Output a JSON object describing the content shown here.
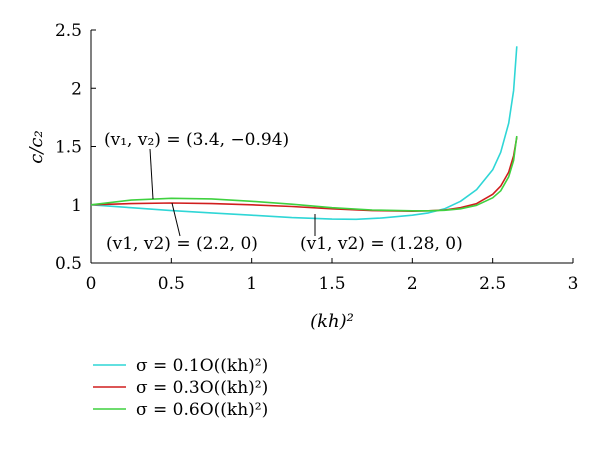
{
  "chart_data": {
    "type": "line",
    "title": "",
    "xlabel": "(kh)²",
    "ylabel": "c/c₂",
    "xlim": [
      0,
      3
    ],
    "ylim": [
      0.5,
      2.5
    ],
    "xticks": [
      "0",
      "0.5",
      "1",
      "1.5",
      "2",
      "2.5",
      "3"
    ],
    "yticks": [
      "0.5",
      "1",
      "1.5",
      "2",
      "2.5"
    ],
    "grid": false,
    "legend_position": "bottom-left",
    "series": [
      {
        "name": "σ = 0.1O((kh)²)",
        "color": "#2fd6d6",
        "x": [
          0,
          0.25,
          0.5,
          0.75,
          1.0,
          1.25,
          1.5,
          1.65,
          1.8,
          2.0,
          2.1,
          2.2,
          2.3,
          2.4,
          2.5,
          2.55,
          2.6,
          2.63,
          2.65
        ],
        "y": [
          1.0,
          0.975,
          0.95,
          0.93,
          0.91,
          0.89,
          0.877,
          0.875,
          0.885,
          0.91,
          0.93,
          0.965,
          1.03,
          1.13,
          1.3,
          1.45,
          1.7,
          1.98,
          2.36
        ]
      },
      {
        "name": "σ = 0.3O((kh)²)",
        "color": "#d01e1e",
        "x": [
          0,
          0.25,
          0.5,
          0.75,
          1.0,
          1.25,
          1.5,
          1.75,
          2.0,
          2.1,
          2.2,
          2.3,
          2.4,
          2.5,
          2.55,
          2.6,
          2.63,
          2.65
        ],
        "y": [
          1.0,
          1.01,
          1.015,
          1.01,
          1.0,
          0.985,
          0.965,
          0.95,
          0.945,
          0.948,
          0.955,
          0.975,
          1.01,
          1.09,
          1.16,
          1.28,
          1.42,
          1.58
        ]
      },
      {
        "name": "σ = 0.6O((kh)²)",
        "color": "#3fd13f",
        "x": [
          0,
          0.25,
          0.5,
          0.75,
          1.0,
          1.25,
          1.5,
          1.75,
          2.0,
          2.1,
          2.2,
          2.3,
          2.4,
          2.5,
          2.55,
          2.6,
          2.63,
          2.65
        ],
        "y": [
          1.0,
          1.04,
          1.055,
          1.05,
          1.03,
          1.005,
          0.975,
          0.955,
          0.948,
          0.948,
          0.952,
          0.965,
          0.995,
          1.06,
          1.12,
          1.24,
          1.38,
          1.59
        ]
      }
    ],
    "annotations": [
      {
        "text": "(v₁, v₂) = (3.4, −0.94)",
        "points_to": {
          "x": 0.38,
          "y": 1.04
        }
      },
      {
        "text": "(v1, v2) = (2.2, 0)",
        "points_to": {
          "x": 0.5,
          "y": 1.0
        }
      },
      {
        "text": "(v1, v2) = (1.28, 0)",
        "points_to": {
          "x": 1.4,
          "y": 0.88
        }
      }
    ]
  }
}
